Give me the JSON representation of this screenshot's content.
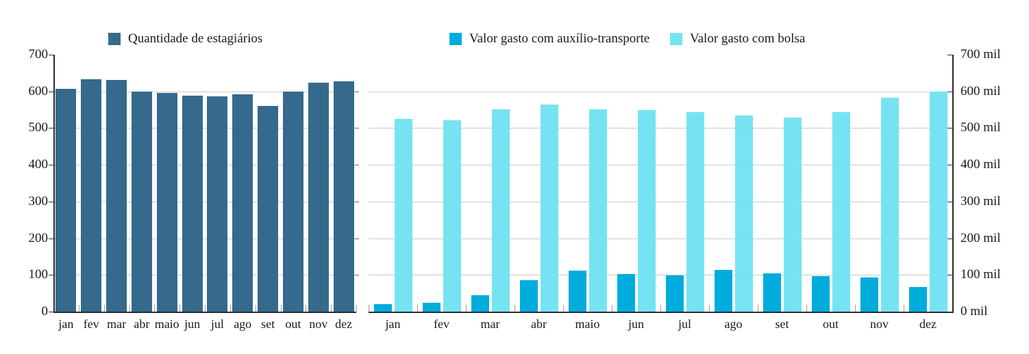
{
  "colors": {
    "estagiarios": "#356a8c",
    "transporte": "#00acdc",
    "bolsa": "#76e3f3",
    "gridline": "#c9c9c9",
    "axis": "#2b2b2b",
    "text": "#1a1a1a"
  },
  "legend_items": [
    {
      "label": "Quantidade de estagiários",
      "color": "#356a8c"
    },
    {
      "label": "Valor gasto com auxílio-transporte",
      "color": "#00acdc"
    },
    {
      "label": "Valor gasto com bolsa",
      "color": "#76e3f3"
    }
  ],
  "chart_data": [
    {
      "type": "bar",
      "title": "",
      "categories": [
        "jan",
        "fev",
        "mar",
        "abr",
        "maio",
        "jun",
        "jul",
        "ago",
        "set",
        "out",
        "nov",
        "dez"
      ],
      "series": [
        {
          "name": "Quantidade de estagiários",
          "color": "#356a8c",
          "values": [
            607,
            634,
            631,
            600,
            595,
            588,
            586,
            593,
            561,
            600,
            624,
            628
          ]
        }
      ],
      "ylim": [
        0,
        700
      ],
      "yticks": [
        0,
        100,
        200,
        300,
        400,
        500,
        600,
        700
      ],
      "ytick_labels": [
        "0",
        "100",
        "200",
        "300",
        "400",
        "500",
        "600",
        "700"
      ],
      "axis_side": "left",
      "grid": true,
      "legend_position": "top"
    },
    {
      "type": "bar",
      "title": "",
      "categories": [
        "jan",
        "fev",
        "mar",
        "abr",
        "maio",
        "jun",
        "jul",
        "ago",
        "set",
        "out",
        "nov",
        "dez"
      ],
      "series": [
        {
          "name": "Valor gasto com auxílio-transporte",
          "color": "#00acdc",
          "values": [
            21,
            25,
            45,
            85,
            112,
            102,
            99,
            113,
            105,
            96,
            94,
            68
          ]
        },
        {
          "name": "Valor gasto com bolsa",
          "color": "#76e3f3",
          "values": [
            526,
            521,
            551,
            564,
            552,
            550,
            543,
            535,
            528,
            543,
            583,
            600
          ]
        }
      ],
      "unit": "mil",
      "ylim": [
        0,
        700
      ],
      "yticks": [
        0,
        100,
        200,
        300,
        400,
        500,
        600,
        700
      ],
      "ytick_labels": [
        "0 mil",
        "100 mil",
        "200 mil",
        "300 mil",
        "400 mil",
        "500 mil",
        "600 mil",
        "700 mil"
      ],
      "axis_side": "right",
      "grid": true,
      "legend_position": "top"
    }
  ]
}
